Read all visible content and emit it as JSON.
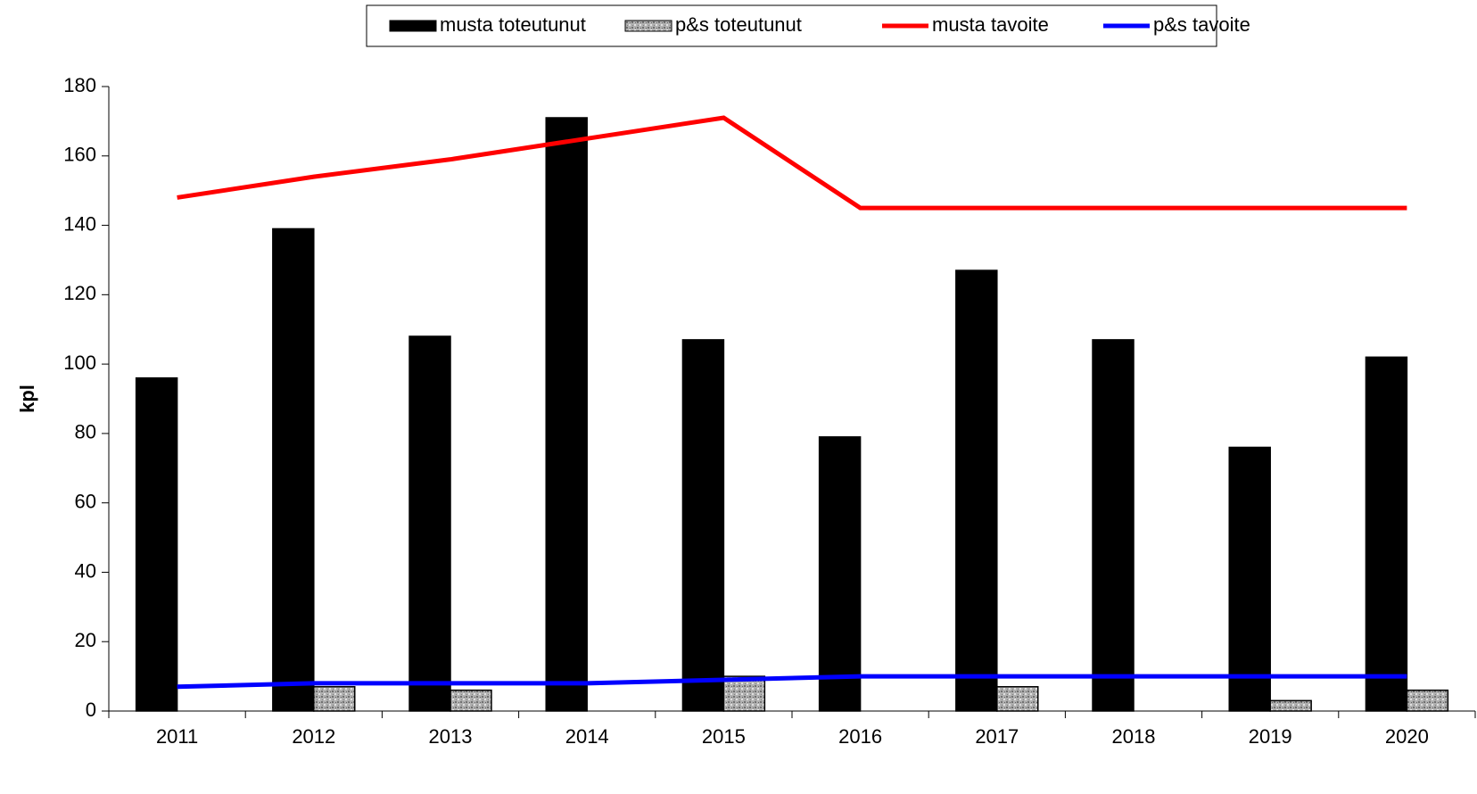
{
  "chart_data": {
    "type": "bar_line",
    "y_label": "kpl",
    "categories": [
      "2011",
      "2012",
      "2013",
      "2014",
      "2015",
      "2016",
      "2017",
      "2018",
      "2019",
      "2020"
    ],
    "series": [
      {
        "name": "musta toteutunut",
        "type": "bar",
        "color": "#000000",
        "values": [
          96,
          139,
          108,
          171,
          107,
          79,
          127,
          107,
          76,
          102
        ]
      },
      {
        "name": "p&s toteutunut",
        "type": "bar",
        "color": "#b0b0b0",
        "values": [
          0,
          7,
          6,
          0,
          10,
          0,
          7,
          0,
          3,
          6
        ]
      },
      {
        "name": "musta tavoite",
        "type": "line",
        "color": "#ff0000",
        "values": [
          148,
          154,
          159,
          165,
          171,
          145,
          145,
          145,
          145,
          145
        ]
      },
      {
        "name": "p&s tavoite",
        "type": "line",
        "color": "#0000ff",
        "values": [
          7,
          8,
          8,
          8,
          9,
          10,
          10,
          10,
          10,
          10
        ]
      }
    ],
    "ylim": [
      0,
      180
    ],
    "yticks": [
      0,
      20,
      40,
      60,
      80,
      100,
      120,
      140,
      160,
      180
    ],
    "legend": "top"
  }
}
